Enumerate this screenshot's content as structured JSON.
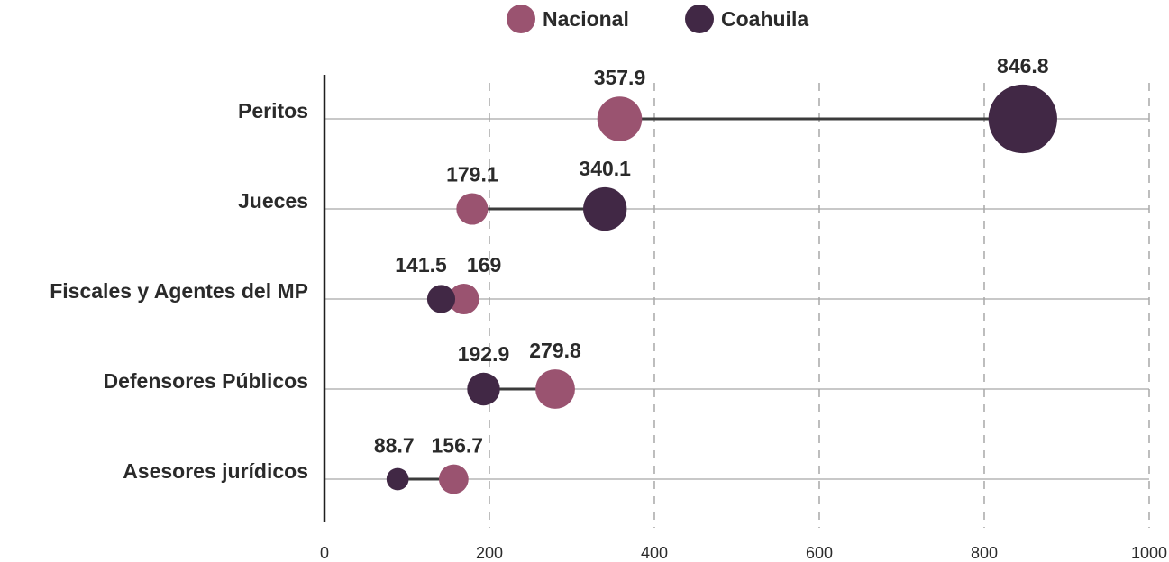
{
  "chart_data": {
    "type": "scatter",
    "subtype": "dumbbell",
    "title": "",
    "xlabel": "",
    "ylabel": "",
    "xlim": [
      0,
      1000
    ],
    "xticks": [
      0,
      200,
      400,
      600,
      800,
      1000
    ],
    "grid": "vertical-dashed",
    "legend_position": "top-center",
    "categories": [
      "Peritos",
      "Jueces",
      "Fiscales y Agentes del MP",
      "Defensores Públicos",
      "Asesores jurídicos"
    ],
    "series": [
      {
        "name": "Nacional",
        "color": "#9a5370",
        "values": [
          357.9,
          179.1,
          169,
          279.8,
          156.7
        ],
        "labels": [
          "357.9",
          "179.1",
          "169",
          "279.8",
          "156.7"
        ]
      },
      {
        "name": "Coahuila",
        "color": "#412845",
        "values": [
          846.8,
          340.1,
          141.5,
          192.9,
          88.7
        ],
        "labels": [
          "846.8",
          "340.1",
          "141.5",
          "192.9",
          "88.7"
        ]
      }
    ]
  }
}
